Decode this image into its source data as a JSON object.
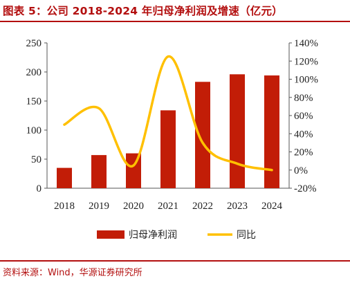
{
  "title": "图表 5：公司 2018-2024 年归母净利润及增速（亿元）",
  "source": "资料来源：Wind，华源证券研究所",
  "colors": {
    "bar": "#c21d07",
    "line": "#ffc000",
    "accent": "#b30f0f"
  },
  "chart_data": {
    "type": "bar",
    "categories": [
      "2018",
      "2019",
      "2020",
      "2021",
      "2022",
      "2023",
      "2024"
    ],
    "series": [
      {
        "name": "归母净利润",
        "type": "bar",
        "axis": "left",
        "values": [
          35,
          57,
          60,
          134,
          183,
          196,
          194
        ]
      },
      {
        "name": "同比",
        "type": "line",
        "axis": "right",
        "values": [
          0.5,
          0.68,
          0.05,
          1.25,
          0.3,
          0.07,
          0.0
        ]
      }
    ],
    "y_left": {
      "min": 0,
      "max": 250,
      "ticks": [
        0,
        50,
        100,
        150,
        200,
        250
      ]
    },
    "y_right": {
      "min": -0.2,
      "max": 1.4,
      "ticks": [
        -0.2,
        0,
        0.2,
        0.4,
        0.6,
        0.8,
        1.0,
        1.2,
        1.4
      ],
      "tick_labels": [
        "-20%",
        "0%",
        "20%",
        "40%",
        "60%",
        "80%",
        "100%",
        "120%",
        "140%"
      ]
    },
    "legend": [
      "归母净利润",
      "同比"
    ],
    "legend_position": "bottom",
    "grid": false
  }
}
